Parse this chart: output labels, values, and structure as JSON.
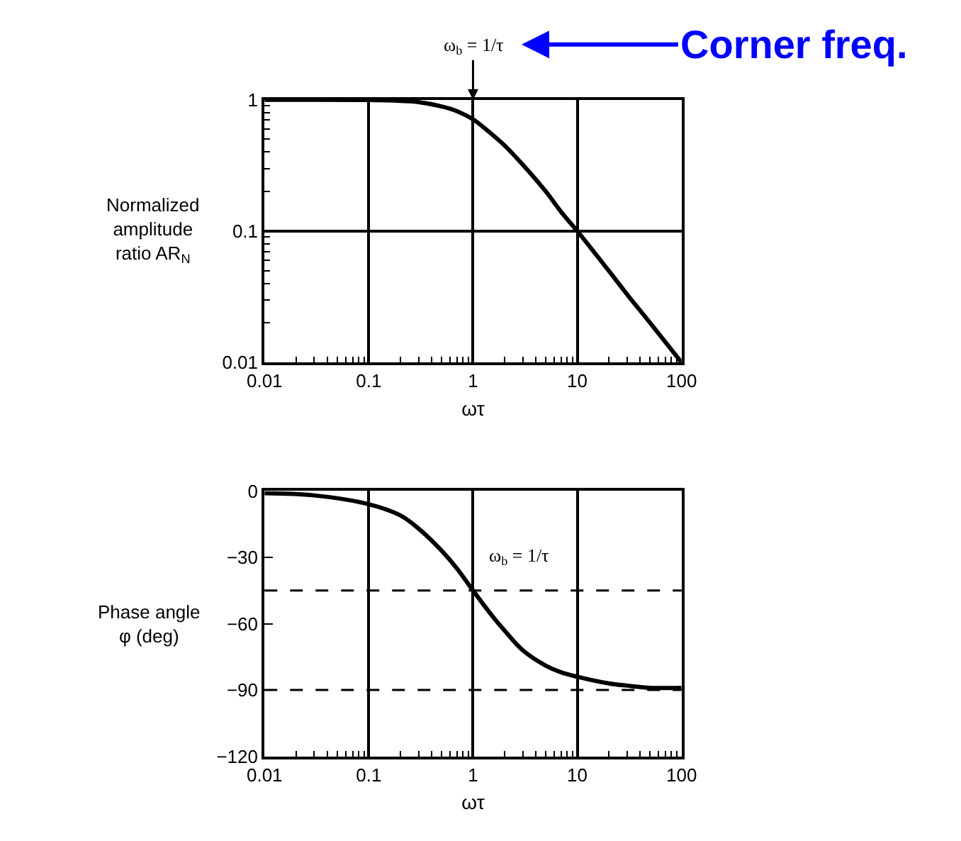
{
  "chart_data": [
    {
      "type": "line",
      "xlabel": "ωτ",
      "ylabel": "Normalized amplitude ratio AR$_{N}$",
      "log": "xy",
      "grid": true,
      "marker": "none",
      "line_style": "solid",
      "x": [
        0.01,
        0.03,
        0.1,
        0.2,
        0.3,
        0.5,
        0.7,
        1,
        1.5,
        2,
        3,
        5,
        7,
        10,
        20,
        30,
        50,
        100
      ],
      "series": [
        {
          "color": "#000000",
          "values": [
            1,
            1,
            0.995,
            0.98,
            0.96,
            0.89,
            0.82,
            0.71,
            0.55,
            0.45,
            0.32,
            0.2,
            0.14,
            0.1,
            0.05,
            0.033,
            0.02,
            0.01
          ]
        }
      ],
      "xlim": [
        0.01,
        100
      ],
      "xticks": [
        0.01,
        0.1,
        1,
        10,
        100
      ],
      "ylim": [
        0.01,
        1
      ],
      "yticks": [
        0.01,
        0.1,
        1
      ],
      "annotations": [
        "ω$_{b}$ = 1/τ",
        "Corner freq."
      ]
    },
    {
      "type": "line",
      "xlabel": "ωτ",
      "ylabel": "Phase angle φ (deg)",
      "log": "x",
      "grid": "x",
      "marker": "none",
      "line_style": "solid",
      "x": [
        0.01,
        0.03,
        0.1,
        0.2,
        0.3,
        0.5,
        0.7,
        1,
        1.5,
        2,
        3,
        5,
        7,
        10,
        20,
        30,
        50,
        100
      ],
      "series": [
        {
          "color": "#000000",
          "values": [
            -1,
            -2,
            -6,
            -11,
            -17,
            -27,
            -35,
            -45,
            -56,
            -63,
            -72,
            -79,
            -82,
            -84,
            -87,
            -88,
            -89,
            -89
          ]
        }
      ],
      "xlim": [
        0.01,
        100
      ],
      "xticks": [
        0.01,
        0.1,
        1,
        10,
        100
      ],
      "ylim": [
        -120,
        0
      ],
      "yticks": [
        -120,
        -90,
        -60,
        -30,
        0
      ],
      "ref_lines": [
        {
          "axis": "y",
          "value": -45,
          "line_style": "dashed"
        },
        {
          "axis": "y",
          "value": -90,
          "line_style": "dashed"
        }
      ],
      "annotations": [
        {
          "text": "ω$_{b}$ = 1/τ",
          "x": 1,
          "y": -45
        }
      ]
    }
  ]
}
